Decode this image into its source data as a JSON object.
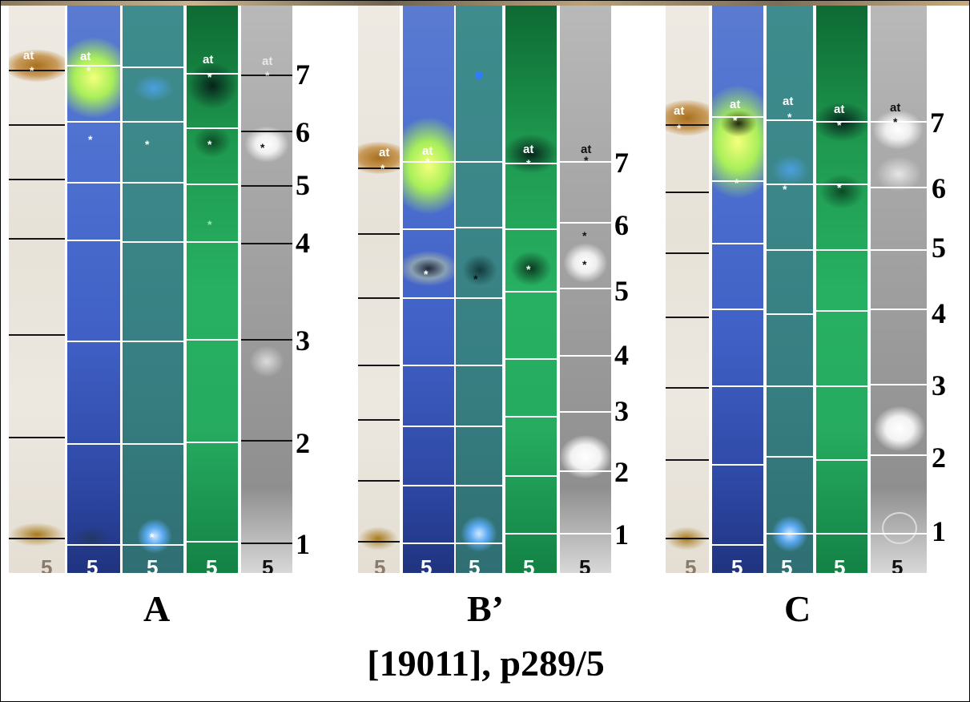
{
  "caption": "[19011], p289/5",
  "colors": {
    "lane_tan": "#ebe6dd",
    "lane_blue": "#4c6fd0",
    "lane_teal": "#3a8587",
    "lane_green": "#27b062",
    "lane_gray": "#a8a8a8"
  },
  "panels": [
    {
      "label": "A",
      "scale": [
        "7",
        "6",
        "5",
        "4",
        "3",
        "2",
        "1"
      ],
      "application_mark": "5",
      "front_mark": "at"
    },
    {
      "label": "B’",
      "scale": [
        "7",
        "6",
        "5",
        "4",
        "3",
        "2",
        "1"
      ],
      "application_mark": "5",
      "front_mark": "at"
    },
    {
      "label": "C",
      "scale": [
        "7",
        "6",
        "5",
        "4",
        "3",
        "2",
        "1"
      ],
      "application_mark": "5",
      "front_mark": "at"
    }
  ],
  "marks": {
    "star": "*"
  }
}
